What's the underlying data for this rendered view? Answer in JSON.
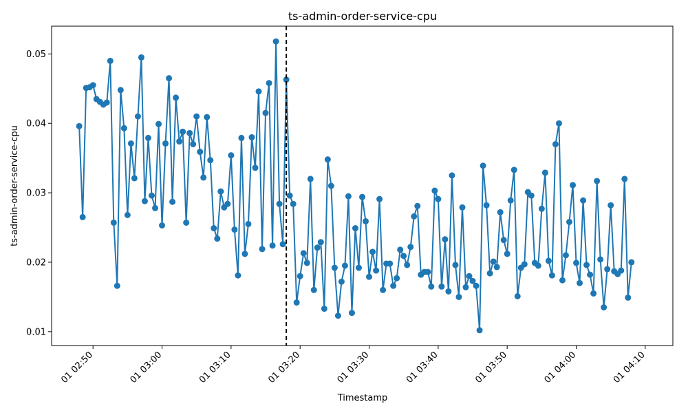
{
  "chart_data": {
    "type": "line",
    "title": "ts-admin-order-service-cpu",
    "xlabel": "Timestamp",
    "ylabel": "ts-admin-order-service-cpu",
    "ylim": [
      0.008,
      0.054
    ],
    "xlim_minutes": [
      164,
      254
    ],
    "yticks": [
      0.01,
      0.02,
      0.03,
      0.04,
      0.05
    ],
    "ytick_labels": [
      "0.01",
      "0.02",
      "0.03",
      "0.04",
      "0.05"
    ],
    "xticks_minutes": [
      170,
      180,
      190,
      200,
      210,
      220,
      230,
      240,
      250
    ],
    "xtick_labels": [
      "01 02:50",
      "01 03:00",
      "01 03:10",
      "01 03:20",
      "01 03:30",
      "01 03:40",
      "01 03:50",
      "01 04:00",
      "01 04:10"
    ],
    "x_start_minutes": 168,
    "x_step_minutes": 0.5,
    "series_color": "#1f77b4",
    "marker": "circle",
    "vline_minutes": 198,
    "vline_style": "dashed",
    "vline_color": "#000000",
    "grid": false,
    "values": [
      0.0396,
      0.0265,
      0.0451,
      0.0452,
      0.0455,
      0.0435,
      0.0431,
      0.0427,
      0.043,
      0.049,
      0.0257,
      0.0166,
      0.0448,
      0.0393,
      0.0268,
      0.0371,
      0.0321,
      0.041,
      0.0495,
      0.0288,
      0.0379,
      0.0296,
      0.0278,
      0.0399,
      0.0253,
      0.0371,
      0.0465,
      0.0287,
      0.0437,
      0.0374,
      0.0388,
      0.0257,
      0.0386,
      0.037,
      0.041,
      0.0359,
      0.0322,
      0.0409,
      0.0347,
      0.0249,
      0.0234,
      0.0302,
      0.0279,
      0.0284,
      0.0354,
      0.0247,
      0.0181,
      0.0379,
      0.0212,
      0.0255,
      0.038,
      0.0336,
      0.0446,
      0.0219,
      0.0415,
      0.0458,
      0.0224,
      0.0518,
      0.0284,
      0.0226,
      0.0463,
      0.0296,
      0.0284,
      0.0142,
      0.018,
      0.0213,
      0.0199,
      0.032,
      0.016,
      0.0221,
      0.0229,
      0.0133,
      0.0348,
      0.031,
      0.0192,
      0.0123,
      0.0172,
      0.0195,
      0.0295,
      0.0127,
      0.0249,
      0.0192,
      0.0294,
      0.0259,
      0.0179,
      0.0215,
      0.0188,
      0.0291,
      0.016,
      0.0198,
      0.0198,
      0.0166,
      0.0177,
      0.0218,
      0.0209,
      0.0196,
      0.0222,
      0.0266,
      0.0281,
      0.0182,
      0.0186,
      0.0186,
      0.0165,
      0.0303,
      0.0291,
      0.0165,
      0.0233,
      0.0158,
      0.0325,
      0.0196,
      0.015,
      0.0279,
      0.0164,
      0.018,
      0.0173,
      0.0166,
      0.0102,
      0.0339,
      0.0282,
      0.0184,
      0.0201,
      0.0193,
      0.0272,
      0.0232,
      0.0212,
      0.0289,
      0.0333,
      0.0151,
      0.0192,
      0.0197,
      0.0301,
      0.0296,
      0.0199,
      0.0195,
      0.0277,
      0.0329,
      0.0202,
      0.0181,
      0.037,
      0.04,
      0.0174,
      0.021,
      0.0258,
      0.0311,
      0.0199,
      0.017,
      0.0289,
      0.0196,
      0.0182,
      0.0155,
      0.0317,
      0.0204,
      0.0135,
      0.019,
      0.0282,
      0.0187,
      0.0183,
      0.0188,
      0.032,
      0.0149,
      0.02
    ]
  }
}
